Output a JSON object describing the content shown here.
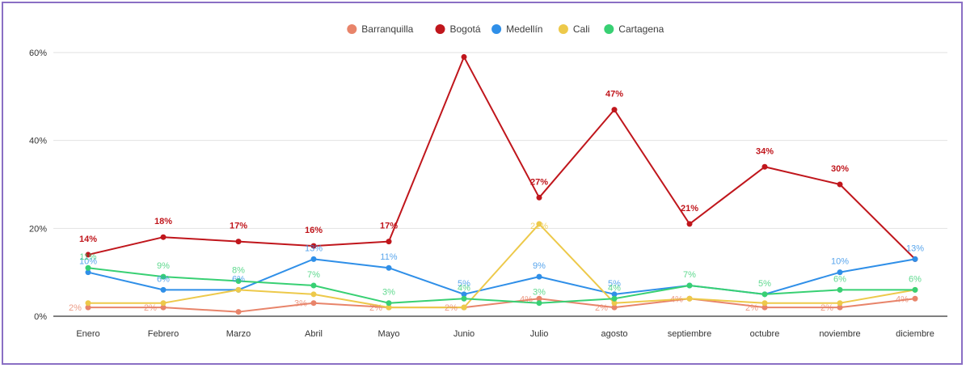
{
  "chart_data": {
    "type": "line",
    "title": "",
    "xlabel": "",
    "ylabel": "",
    "categories": [
      "Enero",
      "Febrero",
      "Marzo",
      "Abril",
      "Mayo",
      "Junio",
      "Julio",
      "agosto",
      "septiembre",
      "octubre",
      "noviembre",
      "diciembre"
    ],
    "ylim": [
      0,
      60
    ],
    "y_ticks": [
      "0%",
      "20%",
      "40%",
      "60%"
    ],
    "grid": true,
    "legend_position": "top",
    "series": [
      {
        "name": "Barranquilla",
        "color": "#e8846a",
        "values": [
          2,
          2,
          1,
          3,
          2,
          2,
          4,
          2,
          4,
          2,
          2,
          4
        ],
        "labels": [
          "2%",
          "2%",
          "",
          "3%",
          "2%",
          "2%",
          "4%",
          "2%",
          "4%",
          "2%",
          "2%",
          "4%"
        ]
      },
      {
        "name": "Bogotá",
        "color": "#c0161c",
        "values": [
          14,
          18,
          17,
          16,
          17,
          59,
          27,
          47,
          21,
          34,
          30,
          13
        ],
        "labels": [
          "14%",
          "18%",
          "17%",
          "16%",
          "17%",
          "",
          "27%",
          "47%",
          "21%",
          "34%",
          "30%",
          ""
        ]
      },
      {
        "name": "Medellín",
        "color": "#2f8fe8",
        "values": [
          10,
          6,
          6,
          13,
          11,
          5,
          9,
          5,
          7,
          5,
          10,
          13
        ],
        "labels": [
          "10%",
          "6%",
          "6%",
          "13%",
          "11%",
          "5%",
          "9%",
          "5%",
          "",
          "",
          "10%",
          "13%"
        ]
      },
      {
        "name": "Cali",
        "color": "#edc94a",
        "values": [
          3,
          3,
          6,
          5,
          2,
          2,
          21,
          3,
          4,
          3,
          3,
          6
        ],
        "labels": [
          "",
          "",
          "",
          "",
          "",
          "",
          "21%",
          "",
          "",
          "",
          "",
          ""
        ]
      },
      {
        "name": "Cartagena",
        "color": "#38d073",
        "values": [
          11,
          9,
          8,
          7,
          3,
          4,
          3,
          4,
          7,
          5,
          6,
          6
        ],
        "labels": [
          "11%",
          "9%",
          "8%",
          "7%",
          "3%",
          "4%",
          "3%",
          "4%",
          "7%",
          "5%",
          "6%",
          "6%"
        ]
      }
    ]
  }
}
